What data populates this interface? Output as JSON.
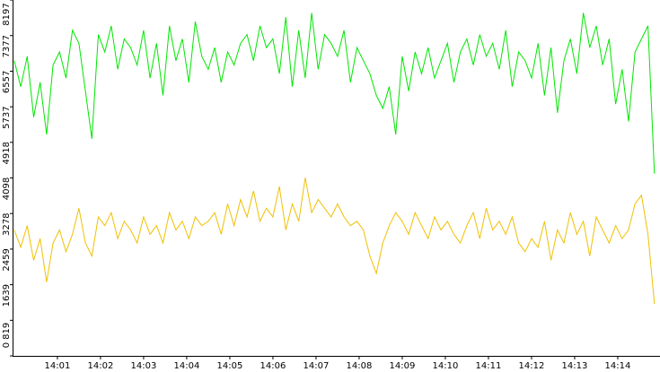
{
  "chart_data": {
    "type": "line",
    "x": [
      0,
      0.15,
      0.3,
      0.45,
      0.6,
      0.75,
      0.9,
      1.05,
      1.2,
      1.35,
      1.5,
      1.65,
      1.8,
      1.95,
      2.1,
      2.25,
      2.4,
      2.55,
      2.7,
      2.85,
      3,
      3.15,
      3.3,
      3.45,
      3.6,
      3.75,
      3.9,
      4.05,
      4.2,
      4.35,
      4.5,
      4.65,
      4.8,
      4.95,
      5.1,
      5.25,
      5.4,
      5.55,
      5.7,
      5.85,
      6,
      6.15,
      6.3,
      6.45,
      6.6,
      6.75,
      6.9,
      7.05,
      7.2,
      7.35,
      7.5,
      7.65,
      7.8,
      7.95,
      8.1,
      8.25,
      8.4,
      8.55,
      8.7,
      8.85,
      9,
      9.15,
      9.3,
      9.45,
      9.6,
      9.75,
      9.9,
      10.05,
      10.2,
      10.35,
      10.5,
      10.65,
      10.8,
      10.95,
      11.1,
      11.25,
      11.4,
      11.55,
      11.7,
      11.85,
      12,
      12.15,
      12.3,
      12.45,
      12.6,
      12.75,
      12.9,
      13.05,
      13.2,
      13.35,
      13.5,
      13.65,
      13.8,
      13.95,
      14.1,
      14.25,
      14.4,
      14.55,
      14.7,
      14.85
    ],
    "series": [
      {
        "color": "#00e600",
        "values": [
          6800,
          6200,
          6900,
          5500,
          6300,
          5100,
          6700,
          7000,
          6400,
          7500,
          7200,
          6100,
          5000,
          7400,
          7000,
          7600,
          6600,
          7300,
          7100,
          6700,
          7500,
          6400,
          7200,
          6000,
          7600,
          6800,
          7300,
          6300,
          7700,
          6900,
          6600,
          7100,
          6300,
          7000,
          6700,
          7200,
          7400,
          6800,
          7600,
          7100,
          7300,
          6500,
          7800,
          6200,
          7500,
          6400,
          7900,
          6600,
          7400,
          7200,
          6900,
          7500,
          6300,
          7100,
          6800,
          6500,
          6000,
          5700,
          6200,
          5100,
          6900,
          6100,
          7000,
          6500,
          7100,
          6400,
          6800,
          7200,
          6300,
          7000,
          7300,
          6700,
          7400,
          6900,
          7200,
          6600,
          7500,
          6200,
          7000,
          6800,
          6400,
          7200,
          6000,
          7100,
          5600,
          6800,
          7300,
          6500,
          7900,
          7100,
          7600,
          6700,
          7300,
          5800,
          6600,
          5400,
          7000,
          7300,
          7600,
          4200
        ]
      },
      {
        "color": "#f0c000",
        "values": [
          2900,
          2500,
          3000,
          2200,
          2700,
          1700,
          2600,
          2900,
          2400,
          2800,
          3400,
          2600,
          2300,
          3200,
          3000,
          3300,
          2700,
          3100,
          2900,
          2600,
          3200,
          2800,
          3000,
          2600,
          3300,
          2900,
          3100,
          2700,
          3200,
          3000,
          3100,
          3300,
          2800,
          3500,
          3000,
          3600,
          3200,
          3800,
          3100,
          3400,
          3200,
          3900,
          2900,
          3500,
          3100,
          4100,
          3300,
          3600,
          3400,
          3200,
          3500,
          3200,
          3000,
          3100,
          2900,
          2300,
          1900,
          2600,
          3000,
          3300,
          3100,
          2800,
          3300,
          3000,
          2700,
          3200,
          2900,
          3100,
          2800,
          2600,
          3000,
          3300,
          2700,
          3400,
          2900,
          3100,
          2800,
          3200,
          2600,
          2400,
          2700,
          2500,
          3100,
          2200,
          2900,
          2600,
          3300,
          2800,
          3100,
          2300,
          3200,
          2900,
          2600,
          3000,
          2700,
          2900,
          3500,
          3700,
          2800,
          1200
        ]
      }
    ],
    "xlim": [
      -0.04,
      14.98
    ],
    "ylim": [
      0,
      8197
    ],
    "xticks": [
      {
        "value": 1,
        "label": "14:01"
      },
      {
        "value": 2,
        "label": "14:02"
      },
      {
        "value": 3,
        "label": "14:03"
      },
      {
        "value": 4,
        "label": "14:04"
      },
      {
        "value": 5,
        "label": "14:05"
      },
      {
        "value": 6,
        "label": "14:06"
      },
      {
        "value": 7,
        "label": "14:07"
      },
      {
        "value": 8,
        "label": "14:08"
      },
      {
        "value": 9,
        "label": "14:09"
      },
      {
        "value": 10,
        "label": "14:10"
      },
      {
        "value": 11,
        "label": "14:11"
      },
      {
        "value": 12,
        "label": "14:12"
      },
      {
        "value": 13,
        "label": "14:13"
      },
      {
        "value": 14,
        "label": "14:14"
      }
    ],
    "yticks": [
      0,
      819,
      1639,
      2459,
      3278,
      4098,
      4918,
      5737,
      6557,
      7377,
      8197
    ]
  }
}
